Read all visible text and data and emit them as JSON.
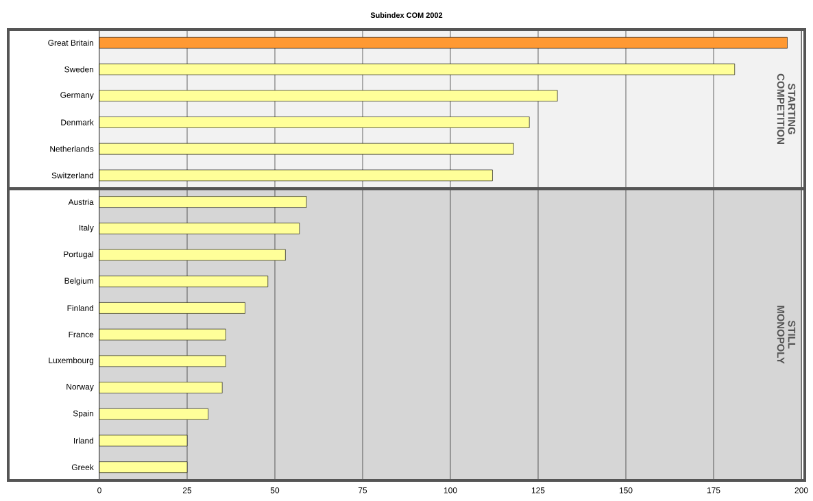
{
  "chart_data": {
    "type": "bar",
    "orientation": "horizontal",
    "title": "Subindex COM 2002",
    "categories": [
      "Great Britain",
      "Sweden",
      "Germany",
      "Denmark",
      "Netherlands",
      "Switzerland",
      "Austria",
      "Italy",
      "Portugal",
      "Belgium",
      "Finland",
      "France",
      "Luxembourg",
      "Norway",
      "Spain",
      "Irland",
      "Greek"
    ],
    "values": [
      196,
      181,
      130.5,
      122.5,
      118,
      112,
      59,
      57,
      53,
      48,
      41.5,
      36,
      36,
      35,
      31,
      25,
      25
    ],
    "colors": [
      "#ff9933",
      "#ffff99",
      "#ffff99",
      "#ffff99",
      "#ffff99",
      "#ffff99",
      "#ffff99",
      "#ffff99",
      "#ffff99",
      "#ffff99",
      "#ffff99",
      "#ffff99",
      "#ffff99",
      "#ffff99",
      "#ffff99",
      "#ffff99",
      "#ffff99"
    ],
    "xlim": [
      0,
      200
    ],
    "xticks": [
      0,
      25,
      50,
      75,
      100,
      125,
      150,
      175,
      200
    ],
    "grid": "x",
    "bands": [
      {
        "axis": "y",
        "from": "Great Britain",
        "to": "Switzerland",
        "label": "STARTING COMPETITION",
        "color": "#f2f2f2"
      },
      {
        "axis": "y",
        "from": "Austria",
        "to": "Greek",
        "label": "STILL MONOPOLY",
        "color": "#d6d6d6"
      }
    ]
  }
}
